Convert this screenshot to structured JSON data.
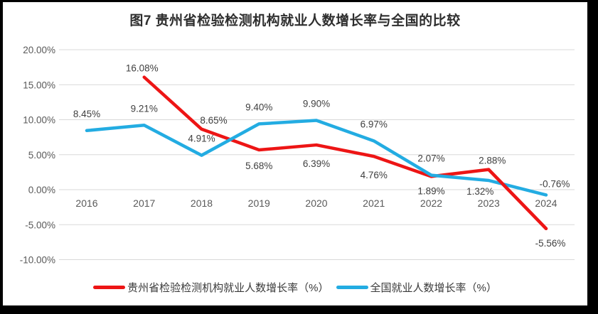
{
  "page": {
    "background": "#000000",
    "panel_background": "#ffffff"
  },
  "chart_data": {
    "type": "line",
    "title": "图7 贵州省检验检测机构就业人数增长率与全国的比较",
    "categories": [
      "2016",
      "2017",
      "2018",
      "2019",
      "2020",
      "2021",
      "2022",
      "2023",
      "2024"
    ],
    "series": [
      {
        "name": "贵州省检验检测机构就业人数增长率（%）",
        "color": "#ed1515",
        "values": [
          null,
          16.08,
          8.65,
          5.68,
          6.39,
          4.76,
          1.89,
          2.88,
          -5.56
        ],
        "label_side": [
          null,
          "above",
          "above",
          "below",
          "below",
          "below",
          "below",
          "above",
          "below"
        ],
        "label_dx": [
          0,
          -3,
          17,
          0,
          0,
          0,
          0,
          5,
          6
        ],
        "label_dy": [
          0,
          0,
          0,
          2,
          6,
          6,
          0,
          0,
          0
        ]
      },
      {
        "name": "全国就业人数增长率（%）",
        "color": "#23ace2",
        "values": [
          8.45,
          9.21,
          4.91,
          9.4,
          9.9,
          6.97,
          2.07,
          1.32,
          -0.76
        ],
        "label_side": [
          "above",
          "above",
          "above",
          "above",
          "above",
          "above",
          "above",
          "below",
          "above"
        ],
        "label_dx": [
          0,
          0,
          0,
          0,
          0,
          0,
          0,
          -12,
          12
        ],
        "label_dy": [
          0,
          0,
          0,
          0,
          0,
          0,
          0,
          0,
          8
        ]
      }
    ],
    "yticks": [
      {
        "value": 20,
        "label": "20.00%"
      },
      {
        "value": 15,
        "label": "15.00%"
      },
      {
        "value": 10,
        "label": "10.00%"
      },
      {
        "value": 5,
        "label": "5.00%"
      },
      {
        "value": 0,
        "label": "0.00%"
      },
      {
        "value": -5,
        "label": "-5.00%"
      },
      {
        "value": -10,
        "label": "-10.00%"
      }
    ],
    "ylim": [
      -10,
      20
    ],
    "grid": true,
    "legend_position": "bottom",
    "colors": {
      "gridline": "#d9d9d9",
      "axis_label": "#595959",
      "data_label": "#3f3f3f"
    }
  }
}
